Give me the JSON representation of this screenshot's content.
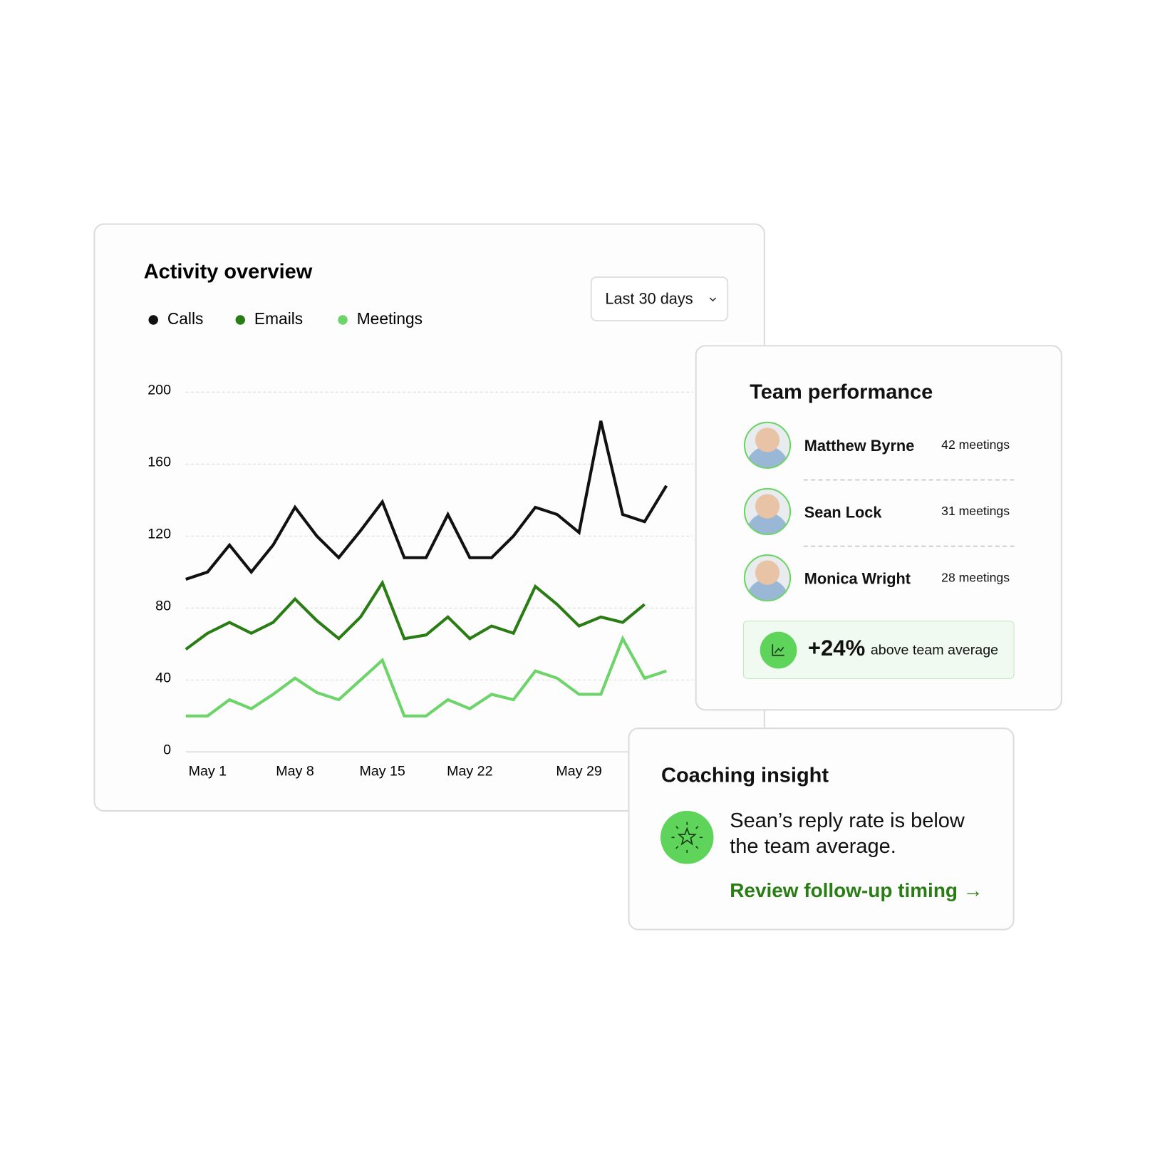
{
  "chart_data": {
    "type": "line",
    "title": "Activity overview",
    "categories": [
      null,
      "May 1",
      null,
      null,
      null,
      "May 8",
      null,
      null,
      null,
      "May 15",
      null,
      null,
      null,
      "May 22",
      null,
      null,
      null,
      null,
      "May 29",
      null,
      null,
      null,
      null
    ],
    "series": [
      {
        "name": "Calls",
        "color": "#111111",
        "values": [
          96,
          100,
          115,
          100,
          115,
          136,
          120,
          108,
          123,
          139,
          108,
          108,
          132,
          108,
          108,
          120,
          136,
          132,
          122,
          184,
          132,
          128,
          148
        ]
      },
      {
        "name": "Emails",
        "color": "#2a7d14",
        "values": [
          57,
          66,
          72,
          66,
          72,
          85,
          73,
          63,
          75,
          94,
          63,
          65,
          75,
          63,
          70,
          66,
          92,
          82,
          70,
          75,
          72,
          82,
          null
        ]
      },
      {
        "name": "Meetings",
        "color": "#6dd46a",
        "values": [
          20,
          20,
          29,
          24,
          32,
          41,
          33,
          29,
          40,
          51,
          20,
          20,
          29,
          24,
          32,
          29,
          45,
          41,
          32,
          32,
          63,
          41,
          45
        ]
      }
    ],
    "ylim": [
      0,
      200
    ],
    "yticks": [
      0,
      40,
      80,
      120,
      160,
      200
    ],
    "grid": true
  },
  "range_selector": "Last 30 days",
  "team_performance": {
    "title": "Team performance",
    "members": [
      {
        "name": "Matthew Byrne",
        "meetings": "42 meetings"
      },
      {
        "name": "Sean Lock",
        "meetings": "31 meetings"
      },
      {
        "name": "Monica Wright",
        "meetings": "28 meetings"
      }
    ],
    "highlight": {
      "value": "+24%",
      "text": "above team average"
    }
  },
  "coaching": {
    "title": "Coaching insight",
    "message": "Sean’s reply rate is below the team average.",
    "link": "Review follow-up timing →"
  }
}
